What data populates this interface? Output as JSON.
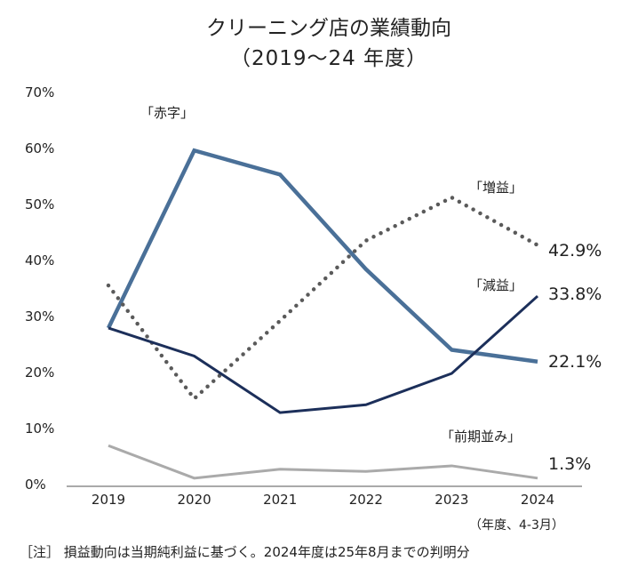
{
  "chart_data": {
    "type": "line",
    "title": "クリーニング店の業績動向",
    "subtitle": "（2019～24 年度）",
    "categories": [
      "2019",
      "2020",
      "2021",
      "2022",
      "2023",
      "2024"
    ],
    "x_unit_label": "（年度、4-3月）",
    "ylim": [
      0,
      70
    ],
    "yticks": [
      "0%",
      "10%",
      "20%",
      "30%",
      "40%",
      "50%",
      "60%",
      "70%"
    ],
    "grid": false,
    "series": [
      {
        "name": "「赤字」",
        "values": [
          28.1,
          59.8,
          55.5,
          38.6,
          24.2,
          22.1
        ],
        "color": "#4a7098",
        "style": "solid-thick",
        "end_label": "22.1%"
      },
      {
        "name": "「増益」",
        "values": [
          35.7,
          15.5,
          29.4,
          43.7,
          51.4,
          42.9
        ],
        "color": "#5a5a5a",
        "style": "dotted",
        "end_label": "42.9%"
      },
      {
        "name": "「減益」",
        "values": [
          28.1,
          23.1,
          13.0,
          14.4,
          20.0,
          33.8
        ],
        "color": "#1c2f5a",
        "style": "solid",
        "end_label": "33.8%"
      },
      {
        "name": "「前期並み」",
        "values": [
          7.1,
          1.3,
          2.9,
          2.5,
          3.5,
          1.3
        ],
        "color": "#aaaaaa",
        "style": "solid",
        "end_label": "1.3%"
      }
    ],
    "note": "［注］ 損益動向は当期純利益に基づく。2024年度は25年8月までの判明分"
  }
}
